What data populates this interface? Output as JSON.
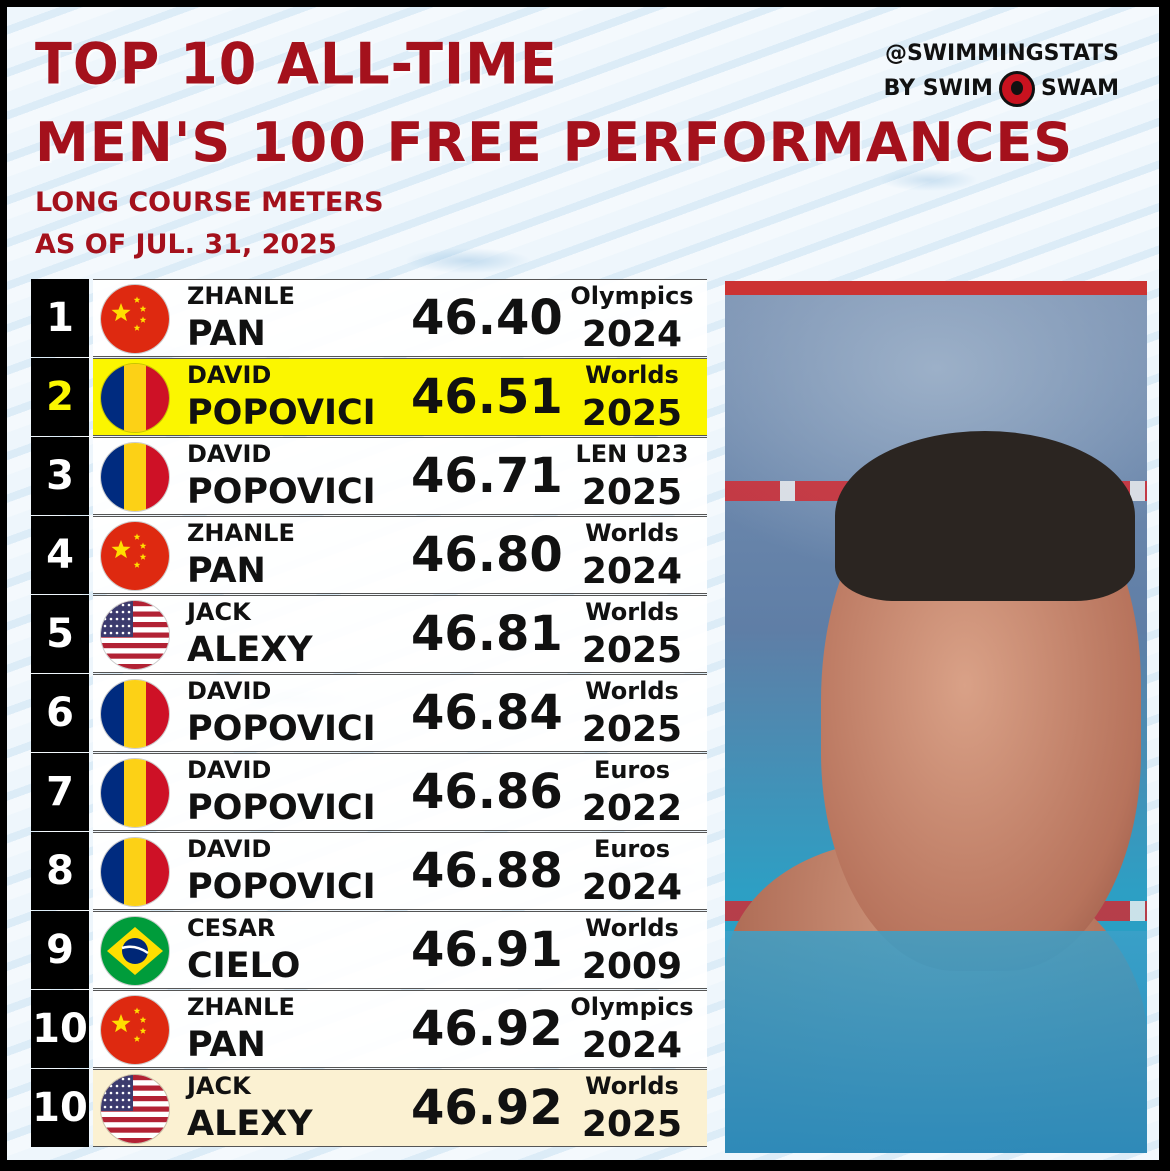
{
  "header": {
    "title_line1": "TOP 10 ALL-TIME",
    "title_line2": "MEN'S 100 FREE PERFORMANCES",
    "subtitle_line1": "LONG COURSE METERS",
    "subtitle_line2": "AS OF JUL. 31, 2025",
    "brand_handle": "@SWIMMINGSTATS",
    "brand_by": "BY SWIM",
    "brand_name": "SWAM"
  },
  "colors": {
    "title_red": "#a4111c",
    "highlight_yellow": "#fbf600",
    "highlight_cream": "#fbf1d2"
  },
  "rows": [
    {
      "rank": "1",
      "flag": "china-flag",
      "first": "ZHANLE",
      "last": "PAN",
      "time": "46.40",
      "meet": "Olympics",
      "year": "2024"
    },
    {
      "rank": "2",
      "flag": "romania-flag",
      "first": "DAVID",
      "last": "POPOVICI",
      "time": "46.51",
      "meet": "Worlds",
      "year": "2025"
    },
    {
      "rank": "3",
      "flag": "romania-flag",
      "first": "DAVID",
      "last": "POPOVICI",
      "time": "46.71",
      "meet": "LEN U23",
      "year": "2025"
    },
    {
      "rank": "4",
      "flag": "china-flag",
      "first": "ZHANLE",
      "last": "PAN",
      "time": "46.80",
      "meet": "Worlds",
      "year": "2024"
    },
    {
      "rank": "5",
      "flag": "usa-flag",
      "first": "JACK",
      "last": "ALEXY",
      "time": "46.81",
      "meet": "Worlds",
      "year": "2025"
    },
    {
      "rank": "6",
      "flag": "romania-flag",
      "first": "DAVID",
      "last": "POPOVICI",
      "time": "46.84",
      "meet": "Worlds",
      "year": "2025"
    },
    {
      "rank": "7",
      "flag": "romania-flag",
      "first": "DAVID",
      "last": "POPOVICI",
      "time": "46.86",
      "meet": "Euros",
      "year": "2022"
    },
    {
      "rank": "8",
      "flag": "romania-flag",
      "first": "DAVID",
      "last": "POPOVICI",
      "time": "46.88",
      "meet": "Euros",
      "year": "2024"
    },
    {
      "rank": "9",
      "flag": "brazil-flag",
      "first": "CESAR",
      "last": "CIELO",
      "time": "46.91",
      "meet": "Worlds",
      "year": "2009"
    },
    {
      "rank": "10",
      "flag": "china-flag",
      "first": "ZHANLE",
      "last": "PAN",
      "time": "46.92",
      "meet": "Olympics",
      "year": "2024"
    },
    {
      "rank": "10",
      "flag": "usa-flag",
      "first": "JACK",
      "last": "ALEXY",
      "time": "46.92",
      "meet": "Worlds",
      "year": "2025"
    }
  ]
}
